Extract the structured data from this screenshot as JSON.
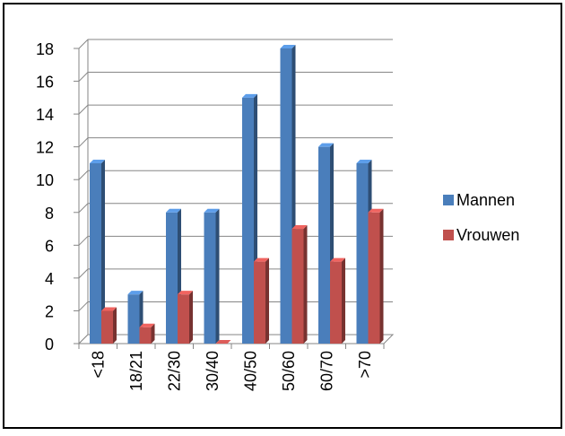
{
  "chart_data": {
    "type": "bar",
    "style": "3d-clustered-column",
    "categories": [
      "<18",
      "18/21",
      "22/30",
      "30/40",
      "40/50",
      "50/60",
      "60/70",
      ">70"
    ],
    "series": [
      {
        "name": "Mannen",
        "values": [
          11,
          3,
          8,
          8,
          15,
          18,
          12,
          11
        ],
        "color": "#4a7ebb"
      },
      {
        "name": "Vrouwen",
        "values": [
          2,
          1,
          3,
          0,
          5,
          7,
          5,
          8
        ],
        "color": "#c0504d"
      }
    ],
    "ylim": [
      0,
      18
    ],
    "yticks": [
      "0",
      "2",
      "4",
      "6",
      "8",
      "10",
      "12",
      "14",
      "16",
      "18"
    ],
    "grid": true,
    "legend_position": "right",
    "title": "",
    "xlabel": "",
    "ylabel": ""
  }
}
